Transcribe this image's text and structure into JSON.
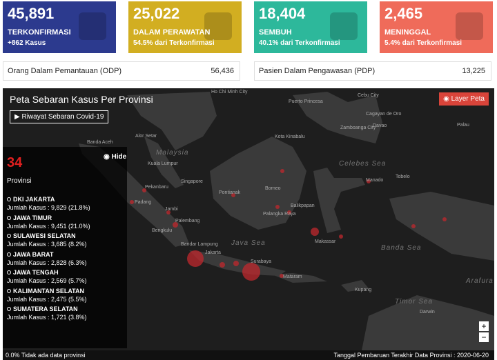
{
  "stats": [
    {
      "value": "45,891",
      "label": "TERKONFIRMASI",
      "sub": "+862 Kasus"
    },
    {
      "value": "25,022",
      "label": "DALAM PERAWATAN",
      "sub": "54.5% dari Terkonfirmasi"
    },
    {
      "value": "18,404",
      "label": "SEMBUH",
      "sub": "40.1% dari Terkonfirmasi"
    },
    {
      "value": "2,465",
      "label": "MENINGGAL",
      "sub": "5.4% dari Terkonfirmasi"
    }
  ],
  "monitoring": [
    {
      "label": "Orang Dalam Pemantauan (ODP)",
      "value": "56,436"
    },
    {
      "label": "Pasien Dalam Pengawasan (PDP)",
      "value": "13,225"
    }
  ],
  "map": {
    "title": "Peta Sebaran Kasus Per Provinsi",
    "history_button": "Riwayat Sebaran Covid-19",
    "layer_button": "Layer Peta",
    "hide": "Hide",
    "province_count": "34",
    "province_label": "Provinsi",
    "provinces": [
      {
        "name": "DKI JAKARTA",
        "cases": "Jumlah Kasus : 9,829 (21.8%)"
      },
      {
        "name": "JAWA TIMUR",
        "cases": "Jumlah Kasus : 9,451 (21.0%)"
      },
      {
        "name": "SULAWESI SELATAN",
        "cases": "Jumlah Kasus : 3,685 (8.2%)"
      },
      {
        "name": "JAWA BARAT",
        "cases": "Jumlah Kasus : 2,828 (6.3%)"
      },
      {
        "name": "JAWA TENGAH",
        "cases": "Jumlah Kasus : 2,569 (5.7%)"
      },
      {
        "name": "KALIMANTAN SELATAN",
        "cases": "Jumlah Kasus : 2,475 (5.5%)"
      },
      {
        "name": "SUMATERA SELATAN",
        "cases": "Jumlah Kasus : 1,721 (3.8%)"
      }
    ],
    "legend": "0.0% Tidak ada data provinsi",
    "update_note": "Tanggal Pembaruan Terakhir Data Provinsi : 2020-06-20",
    "zoom_in": "+",
    "zoom_out": "−",
    "places": [
      "Ho Chi Minh City",
      "Cebu City",
      "Puerto Princesa",
      "Cagayan de Oro",
      "Zamboanga City",
      "Davao",
      "Palau",
      "Kota Kinabalu",
      "Banda Aceh",
      "Alor Setar",
      "Malaysia",
      "Kuala Lumpur",
      "Singapore",
      "Pekanbaru",
      "Pontianak",
      "Borneo",
      "Balikpapan",
      "Manado",
      "Tobelo",
      "Celebes Sea",
      "Padang",
      "Jambi",
      "Palembang",
      "Palangka Raya",
      "Bengkulu",
      "Bandar Lampung",
      "Jakarta",
      "Java Sea",
      "Surabaya",
      "Mataram",
      "Makassar",
      "Banda Sea",
      "Kupang",
      "Timor Sea",
      "Arafura Sea",
      "Darwin"
    ]
  }
}
